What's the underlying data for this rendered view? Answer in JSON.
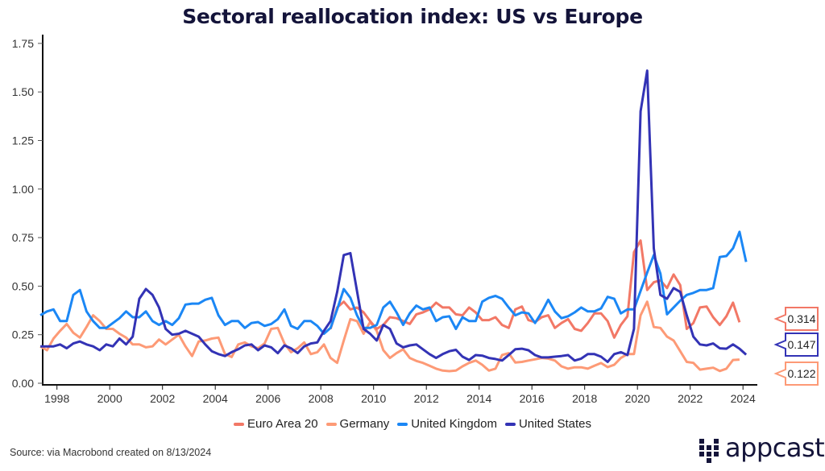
{
  "chart_data": {
    "type": "line",
    "title": "Sectoral reallocation index: US vs Europe",
    "xlabel": "",
    "ylabel": "",
    "frequency": "quarterly",
    "ylim": [
      0,
      1.75
    ],
    "yticks": [
      "0.00",
      "0.25",
      "0.50",
      "0.75",
      "1.00",
      "1.25",
      "1.50",
      "1.75"
    ],
    "xticks": [
      "1998",
      "2000",
      "2002",
      "2004",
      "2006",
      "2008",
      "2010",
      "2012",
      "2014",
      "2016",
      "2018",
      "2020",
      "2022",
      "2024"
    ],
    "grid": false,
    "legend_position": "bottom",
    "series": [
      {
        "name": "Euro Area 20",
        "color": "#f27866",
        "start": "2008Q3",
        "last_value_label": "0.314",
        "values": [
          0.28,
          0.39,
          0.42,
          0.38,
          0.39,
          0.365,
          0.32,
          0.28,
          0.3,
          0.34,
          0.335,
          0.32,
          0.305,
          0.355,
          0.365,
          0.38,
          0.415,
          0.39,
          0.39,
          0.355,
          0.35,
          0.39,
          0.365,
          0.325,
          0.325,
          0.34,
          0.3,
          0.285,
          0.38,
          0.395,
          0.325,
          0.315,
          0.34,
          0.35,
          0.285,
          0.31,
          0.33,
          0.28,
          0.27,
          0.31,
          0.36,
          0.36,
          0.32,
          0.235,
          0.3,
          0.345,
          0.675,
          0.735,
          0.48,
          0.52,
          0.53,
          0.49,
          0.56,
          0.505,
          0.28,
          0.31,
          0.39,
          0.395,
          0.34,
          0.3,
          0.345,
          0.415,
          0.314
        ]
      },
      {
        "name": "Germany",
        "color": "#fd9a76",
        "start": "1997Q3",
        "last_value_label": "0.122",
        "values": [
          0.19,
          0.17,
          0.23,
          0.27,
          0.305,
          0.26,
          0.235,
          0.29,
          0.35,
          0.32,
          0.28,
          0.28,
          0.255,
          0.235,
          0.2,
          0.2,
          0.185,
          0.19,
          0.225,
          0.2,
          0.225,
          0.25,
          0.19,
          0.14,
          0.215,
          0.22,
          0.23,
          0.235,
          0.15,
          0.135,
          0.2,
          0.21,
          0.19,
          0.18,
          0.205,
          0.28,
          0.285,
          0.205,
          0.16,
          0.18,
          0.21,
          0.15,
          0.16,
          0.2,
          0.13,
          0.105,
          0.22,
          0.33,
          0.32,
          0.255,
          0.315,
          0.27,
          0.17,
          0.13,
          0.155,
          0.175,
          0.13,
          0.115,
          0.105,
          0.09,
          0.075,
          0.065,
          0.062,
          0.065,
          0.087,
          0.105,
          0.117,
          0.095,
          0.065,
          0.075,
          0.145,
          0.155,
          0.107,
          0.11,
          0.117,
          0.123,
          0.13,
          0.127,
          0.117,
          0.087,
          0.075,
          0.082,
          0.082,
          0.075,
          0.09,
          0.104,
          0.083,
          0.095,
          0.13,
          0.15,
          0.15,
          0.35,
          0.42,
          0.29,
          0.285,
          0.24,
          0.22,
          0.165,
          0.11,
          0.105,
          0.07,
          0.075,
          0.08,
          0.063,
          0.075,
          0.12,
          0.122
        ]
      },
      {
        "name": "United Kingdom",
        "color": "#1b87f5",
        "start": "1997Q3",
        "values": [
          0.35,
          0.37,
          0.38,
          0.32,
          0.32,
          0.455,
          0.48,
          0.37,
          0.32,
          0.285,
          0.285,
          0.31,
          0.335,
          0.37,
          0.34,
          0.34,
          0.37,
          0.32,
          0.3,
          0.32,
          0.3,
          0.335,
          0.405,
          0.41,
          0.41,
          0.43,
          0.44,
          0.35,
          0.3,
          0.32,
          0.32,
          0.285,
          0.31,
          0.315,
          0.295,
          0.305,
          0.33,
          0.38,
          0.295,
          0.28,
          0.32,
          0.32,
          0.295,
          0.255,
          0.285,
          0.38,
          0.485,
          0.44,
          0.35,
          0.285,
          0.285,
          0.3,
          0.39,
          0.42,
          0.365,
          0.3,
          0.36,
          0.4,
          0.38,
          0.39,
          0.32,
          0.34,
          0.345,
          0.28,
          0.34,
          0.32,
          0.32,
          0.42,
          0.44,
          0.45,
          0.435,
          0.39,
          0.35,
          0.365,
          0.36,
          0.31,
          0.365,
          0.43,
          0.37,
          0.335,
          0.345,
          0.365,
          0.39,
          0.37,
          0.37,
          0.385,
          0.445,
          0.435,
          0.36,
          0.38,
          0.38,
          0.475,
          0.57,
          0.66,
          0.565,
          0.355,
          0.39,
          0.425,
          0.455,
          0.465,
          0.48,
          0.48,
          0.49,
          0.65,
          0.655,
          0.695,
          0.78,
          0.625
        ]
      },
      {
        "name": "United States",
        "color": "#3333b5",
        "start": "1997Q3",
        "last_value_label": "0.147",
        "values": [
          0.19,
          0.19,
          0.19,
          0.2,
          0.18,
          0.205,
          0.215,
          0.2,
          0.19,
          0.17,
          0.2,
          0.19,
          0.23,
          0.2,
          0.24,
          0.435,
          0.485,
          0.455,
          0.39,
          0.28,
          0.25,
          0.255,
          0.27,
          0.255,
          0.24,
          0.2,
          0.165,
          0.15,
          0.14,
          0.16,
          0.175,
          0.195,
          0.2,
          0.17,
          0.195,
          0.185,
          0.155,
          0.195,
          0.18,
          0.155,
          0.19,
          0.205,
          0.21,
          0.27,
          0.32,
          0.47,
          0.66,
          0.67,
          0.475,
          0.28,
          0.255,
          0.22,
          0.3,
          0.28,
          0.205,
          0.185,
          0.195,
          0.2,
          0.175,
          0.15,
          0.13,
          0.15,
          0.165,
          0.172,
          0.137,
          0.12,
          0.145,
          0.142,
          0.13,
          0.125,
          0.117,
          0.145,
          0.175,
          0.178,
          0.17,
          0.145,
          0.133,
          0.133,
          0.137,
          0.14,
          0.145,
          0.117,
          0.127,
          0.15,
          0.15,
          0.137,
          0.11,
          0.15,
          0.16,
          0.145,
          0.28,
          1.4,
          1.61,
          0.695,
          0.455,
          0.435,
          0.49,
          0.47,
          0.35,
          0.24,
          0.2,
          0.195,
          0.205,
          0.18,
          0.178,
          0.2,
          0.178,
          0.147
        ]
      }
    ]
  },
  "footer": {
    "source": "Source:  via Macrobond created on 8/13/2024",
    "logo_text": "appcast"
  }
}
